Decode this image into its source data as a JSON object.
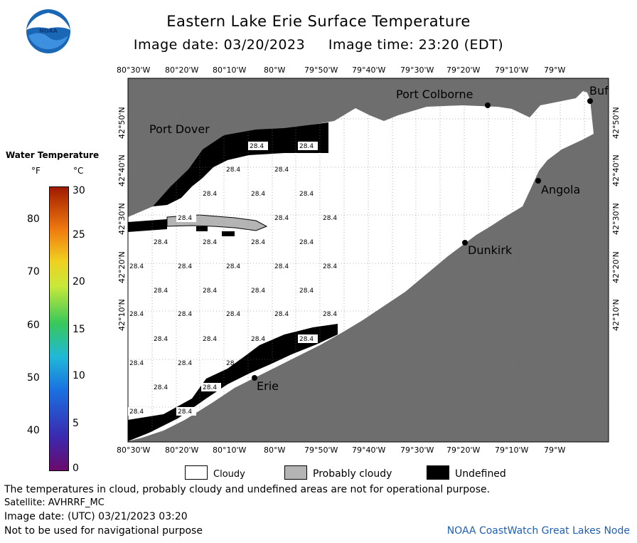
{
  "header": {
    "title": "Eastern Lake Erie Surface Temperature",
    "subtitle": "Image date: 03/20/2023     Image time: 23:20 (EDT)"
  },
  "logo": {
    "text": "NOAA",
    "icon": "noaa-logo"
  },
  "axes": {
    "lon_labels": [
      "80°30'W",
      "80°20'W",
      "80°10'W",
      "80°W",
      "79°50'W",
      "79°40'W",
      "79°30'W",
      "79°20'W",
      "79°10'W",
      "79°W"
    ],
    "lat_labels": [
      "42°50'N",
      "42°40'N",
      "42°30'N",
      "42°20'N",
      "42°10'N"
    ]
  },
  "places": {
    "port_colborne": "Port Colborne",
    "buffalo": "Buf",
    "port_dover": "Port Dover",
    "angola": "Angola",
    "dunkirk": "Dunkirk",
    "erie": "Erie"
  },
  "temperature_labels": {
    "value": "28.4"
  },
  "color_scale": {
    "title": "Water Temperature",
    "unit_f": "°F",
    "unit_c": "°C",
    "f_ticks": [
      "80",
      "70",
      "60",
      "50",
      "40"
    ],
    "c_ticks": [
      "30",
      "25",
      "20",
      "15",
      "10",
      "5",
      "0"
    ]
  },
  "legend": {
    "cloudy": "Cloudy",
    "probably_cloudy": "Probably cloudy",
    "undefined": "Undefined",
    "colors": {
      "cloudy": "#ffffff",
      "probably_cloudy": "#b4b4b4",
      "undefined": "#000000",
      "land": "#6e6e6e"
    }
  },
  "footer": {
    "disclaimer": "The temperatures in cloud, probably cloudy and undefined areas are not for operational purpose.",
    "satellite": "Satellite: AVHRRF_MC",
    "utc_date": "Image date: (UTC) 03/21/2023  03:20",
    "nav_warning": "Not to be used for navigational purpose",
    "credit": "NOAA CoastWatch Great Lakes Node"
  }
}
